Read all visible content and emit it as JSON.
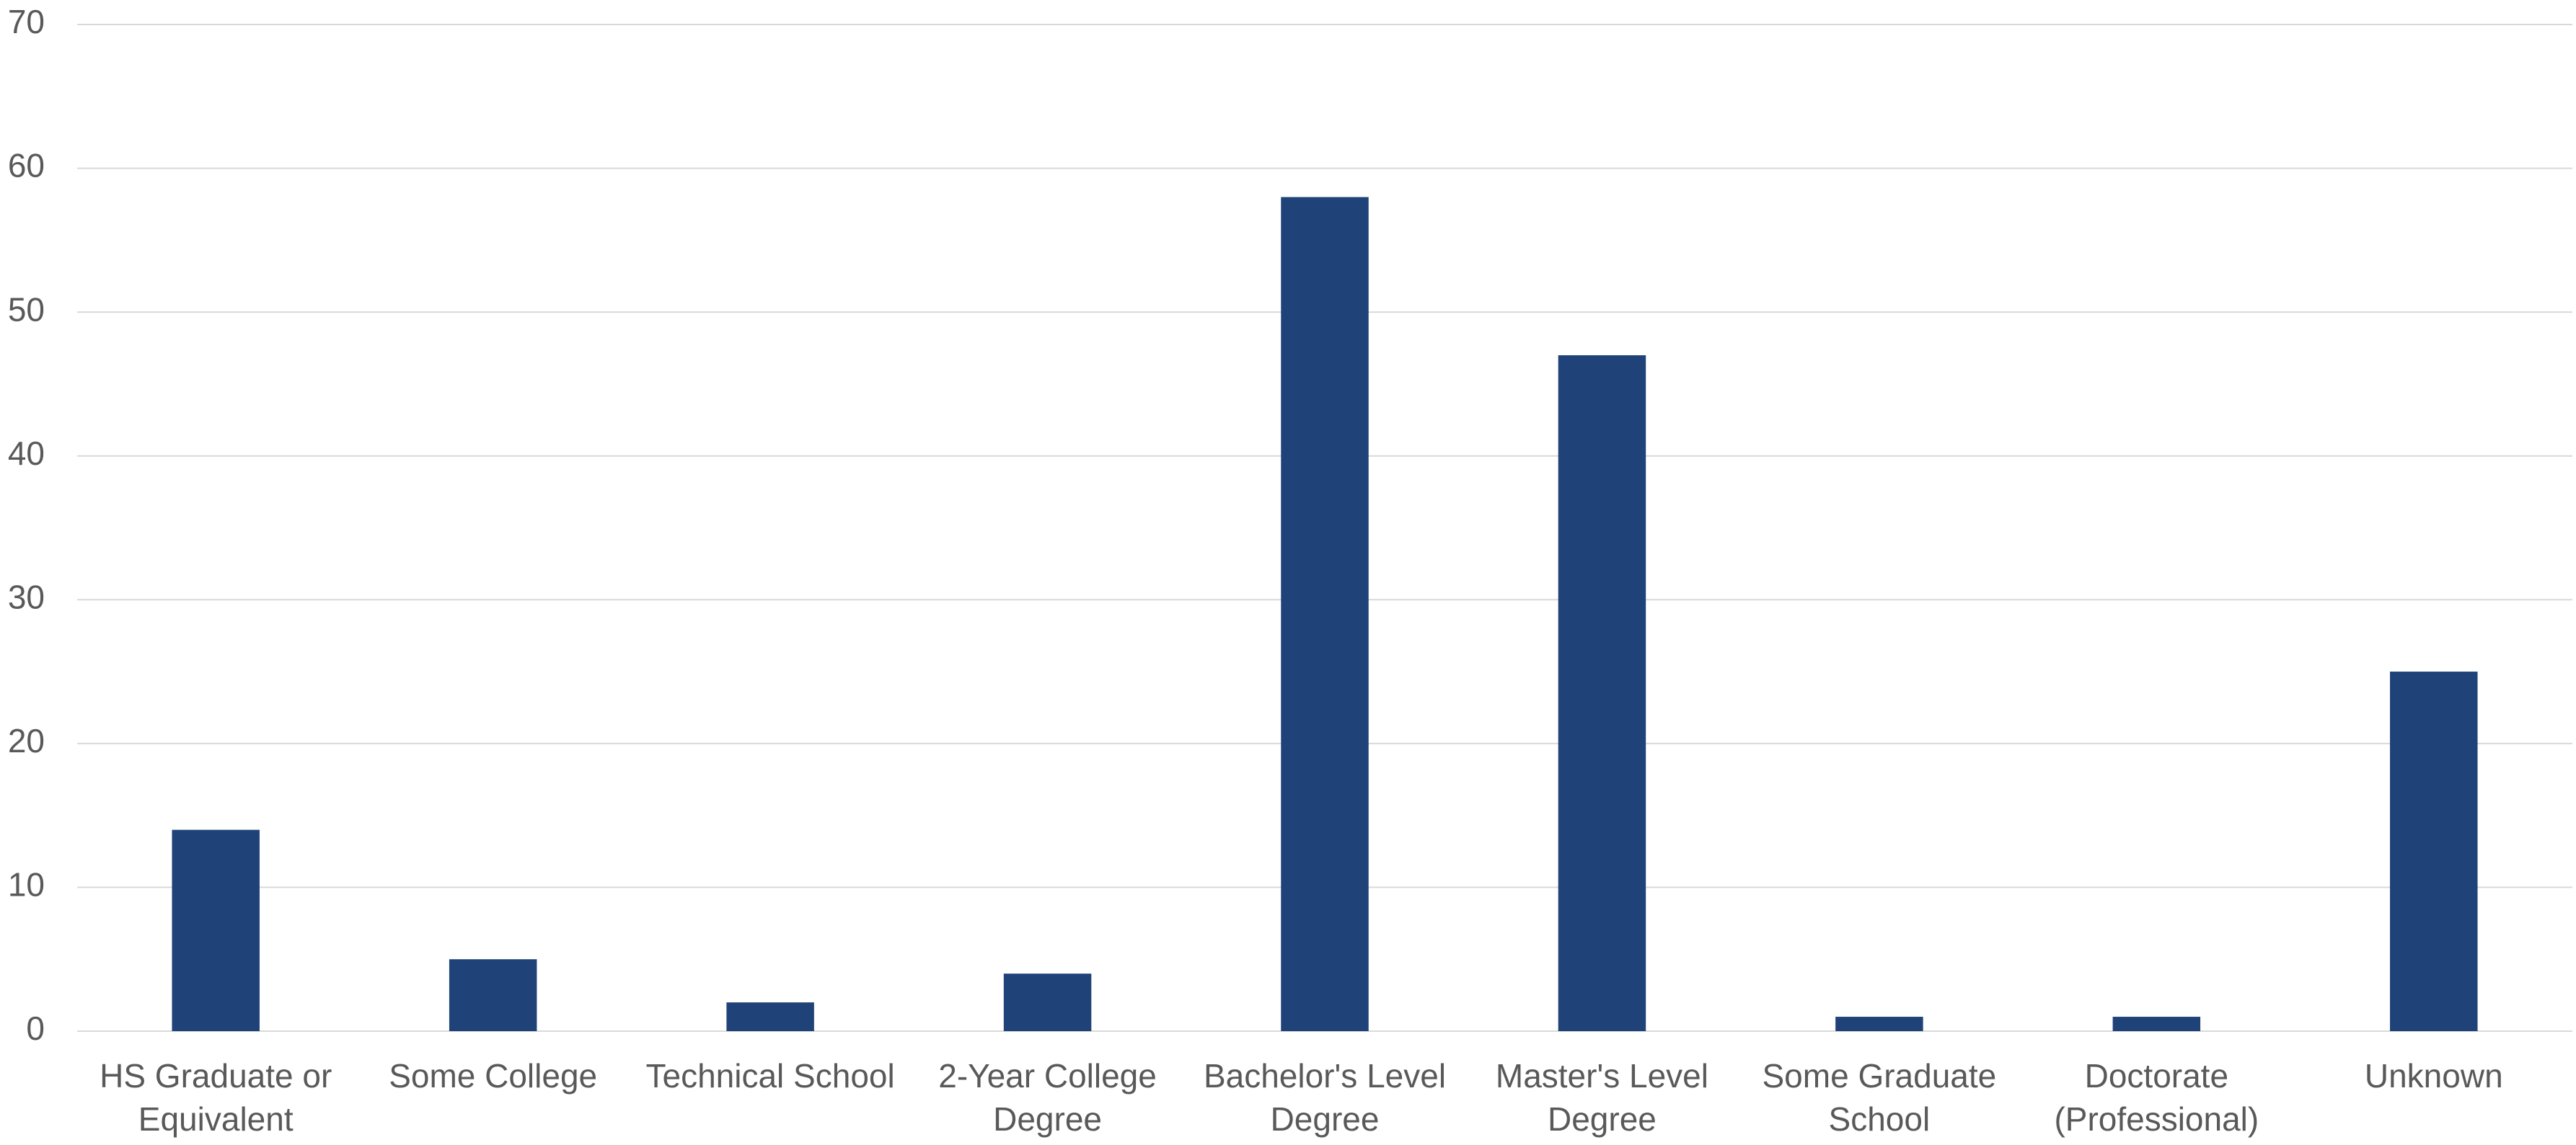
{
  "chart_data": {
    "type": "bar",
    "categories": [
      "HS Graduate or Equivalent",
      "Some College",
      "Technical School",
      "2-Year College Degree",
      "Bachelor's Level Degree",
      "Master's Level Degree",
      "Some Graduate School",
      "Doctorate (Professional)",
      "Unknown"
    ],
    "values": [
      14,
      5,
      2,
      4,
      58,
      47,
      1,
      1,
      25
    ],
    "color": "#1f4378",
    "ylim": [
      0,
      70
    ],
    "yticks": [
      0,
      10,
      20,
      30,
      40,
      50,
      60,
      70
    ],
    "grid": true
  }
}
